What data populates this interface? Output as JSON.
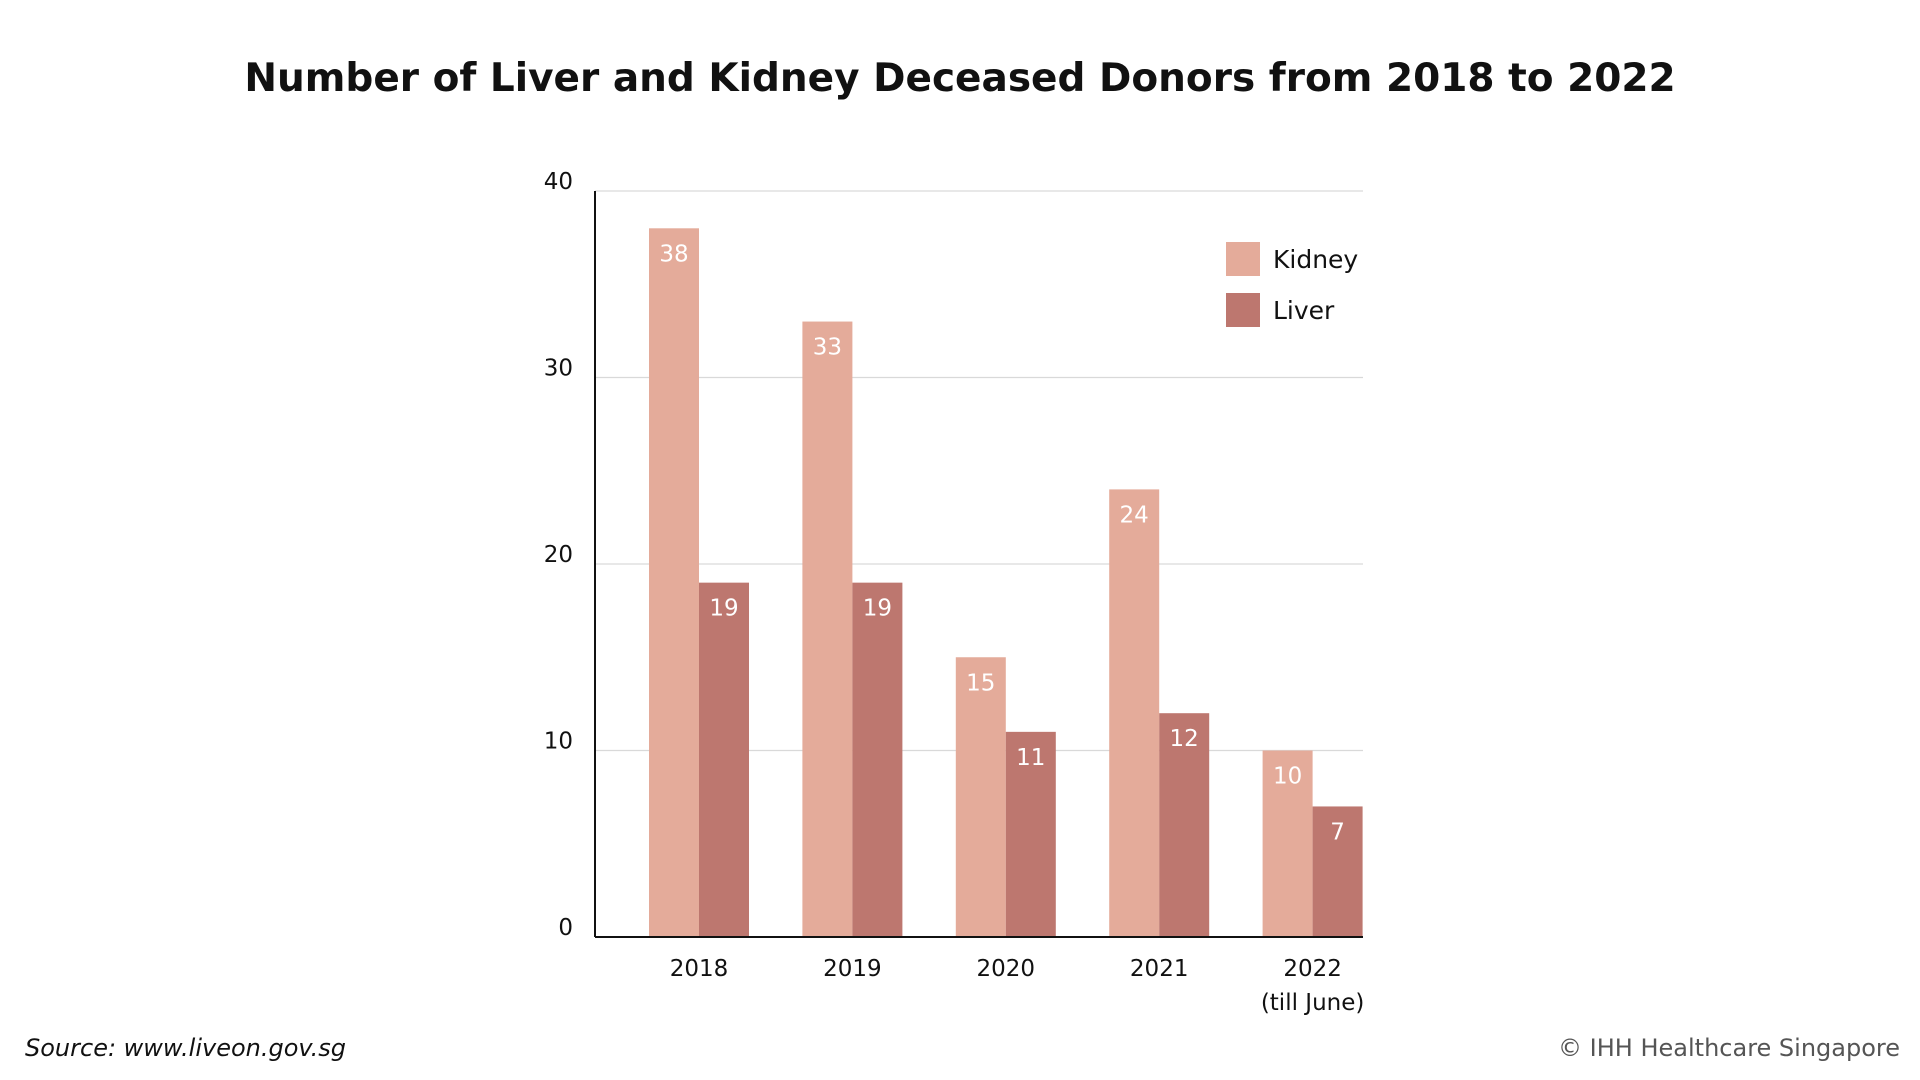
{
  "chart_data": {
    "type": "bar",
    "title": "Number of Liver and Kidney Deceased Donors from 2018 to 2022",
    "categories": [
      "2018",
      "2019",
      "2020",
      "2021",
      "2022"
    ],
    "category_sublabels": [
      "",
      "",
      "",
      "",
      "(till June)"
    ],
    "series": [
      {
        "name": "Kidney",
        "values": [
          38,
          33,
          15,
          24,
          10
        ],
        "color": "#e4ab9a"
      },
      {
        "name": "Liver",
        "values": [
          19,
          19,
          11,
          12,
          7
        ],
        "color": "#bd776f"
      }
    ],
    "ylim": [
      0,
      40
    ],
    "yticks": [
      0,
      10,
      20,
      30,
      40
    ],
    "grid": true,
    "legend": "top-right",
    "data_labels": true,
    "xlabel": "",
    "ylabel": ""
  },
  "footer": {
    "source": "Source: www.liveon.gov.sg",
    "copyright": "© IHH Healthcare Singapore"
  }
}
